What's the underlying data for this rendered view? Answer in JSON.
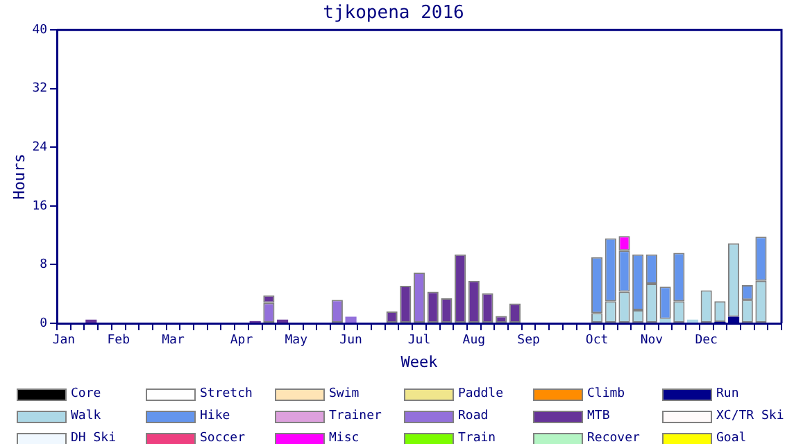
{
  "chart_data": {
    "type": "bar",
    "title": "tjkopena 2016",
    "xlabel": "Week",
    "ylabel": "Hours",
    "stacked": true,
    "grid": false,
    "legend": "bottom",
    "categories": [
      "Jan",
      null,
      null,
      null,
      "Feb",
      null,
      null,
      null,
      "Mar",
      null,
      null,
      null,
      null,
      "Apr",
      null,
      null,
      null,
      "May",
      null,
      null,
      null,
      "Jun",
      null,
      null,
      null,
      null,
      "Jul",
      null,
      null,
      null,
      "Aug",
      null,
      null,
      null,
      "Sep",
      null,
      null,
      null,
      null,
      "Oct",
      null,
      null,
      null,
      "Nov",
      null,
      null,
      null,
      "Dec",
      null,
      null,
      null,
      null,
      null
    ],
    "ylim": [
      0,
      40
    ],
    "yticks": [
      0,
      8,
      16,
      24,
      32,
      40
    ],
    "series": [
      {
        "name": "Core",
        "color": "#000000",
        "values": [
          0,
          0,
          0,
          0,
          0,
          0,
          0,
          0,
          0,
          0,
          0,
          0,
          0,
          0,
          0,
          0,
          0,
          0,
          0,
          0,
          0,
          0,
          0,
          0,
          0,
          0,
          0,
          0,
          0,
          0,
          0,
          0,
          0,
          0,
          0,
          0,
          0,
          0,
          0,
          0,
          0,
          0,
          0,
          0,
          0,
          0,
          0,
          0,
          0,
          0,
          0,
          0,
          0
        ]
      },
      {
        "name": "Stretch",
        "color": "#ffffff",
        "values": [
          0,
          0,
          0,
          0,
          0,
          0,
          0,
          0,
          0,
          0,
          0,
          0,
          0,
          0,
          0,
          0,
          0,
          0,
          0,
          0,
          0,
          0,
          0,
          0,
          0,
          0,
          0,
          0,
          0,
          0,
          0,
          0,
          0,
          0,
          0,
          0,
          0,
          0,
          0,
          0,
          0,
          0,
          0,
          0,
          0,
          0,
          0,
          0,
          0,
          0,
          0,
          0,
          0
        ]
      },
      {
        "name": "Swim",
        "color": "#ffe4b5",
        "values": [
          0,
          0,
          0,
          0,
          0,
          0,
          0,
          0,
          0,
          0,
          0,
          0,
          0,
          0,
          0,
          0,
          0,
          0,
          0,
          0,
          0,
          0,
          0,
          0,
          0,
          0,
          0,
          0,
          0,
          0,
          0,
          0,
          0,
          0,
          0,
          0,
          0,
          0,
          0,
          0,
          0,
          0,
          0,
          0,
          0,
          0,
          0,
          0,
          0,
          0,
          0,
          0,
          0
        ]
      },
      {
        "name": "Paddle",
        "color": "#f0e68c",
        "values": [
          0,
          0,
          0,
          0,
          0,
          0,
          0,
          0,
          0,
          0,
          0,
          0,
          0,
          0,
          0,
          0,
          0,
          0,
          0,
          0,
          0,
          0,
          0,
          0,
          0,
          0,
          0,
          0,
          0,
          0,
          0,
          0,
          0,
          0,
          0,
          0,
          0,
          0,
          0,
          0,
          0,
          0,
          0,
          0,
          0,
          0,
          0,
          0,
          0,
          0,
          0,
          0,
          0
        ]
      },
      {
        "name": "Climb",
        "color": "#ff8c00",
        "values": [
          0,
          0,
          0,
          0,
          0,
          0,
          0,
          0,
          0,
          0,
          0,
          0,
          0,
          0,
          0,
          0,
          0,
          0,
          0,
          0,
          0,
          0,
          0,
          0,
          0,
          0,
          0,
          0,
          0,
          0,
          0,
          0,
          0,
          0,
          0,
          0,
          0,
          0,
          0,
          0,
          0,
          0,
          0,
          0,
          0,
          0,
          0,
          0,
          0,
          0,
          0,
          0,
          0
        ]
      },
      {
        "name": "Run",
        "color": "#00008b",
        "values": [
          0,
          0,
          0,
          0,
          0,
          0,
          0,
          0,
          0,
          0,
          0,
          0,
          0,
          0,
          0,
          0,
          0,
          0,
          0,
          0,
          0,
          0,
          0,
          0,
          0,
          0,
          0,
          0,
          0,
          0,
          0,
          0,
          0,
          0,
          0,
          0,
          0,
          0,
          0,
          0,
          0,
          0,
          0,
          0,
          0,
          0,
          0,
          0,
          0.2,
          0.9,
          0,
          0,
          0
        ]
      },
      {
        "name": "Walk",
        "color": "#add8e6",
        "values": [
          0,
          0,
          0,
          0,
          0,
          0,
          0,
          0,
          0,
          0,
          0,
          0,
          0,
          0,
          0,
          0,
          0,
          0,
          0,
          0,
          0,
          0,
          0,
          0,
          0,
          0,
          0,
          0,
          0,
          0,
          0,
          0,
          0,
          0,
          0,
          0,
          0,
          0,
          0,
          1.4,
          3.0,
          4.3,
          1.8,
          5.4,
          0.6,
          3.0,
          0.5,
          4.5,
          2.8,
          10.0,
          3.2,
          5.8,
          0
        ]
      },
      {
        "name": "Hike",
        "color": "#6495ed",
        "values": [
          0,
          0,
          0,
          0,
          0,
          0,
          0,
          0,
          0,
          0,
          0,
          0,
          0,
          0,
          0,
          0,
          0,
          0,
          0,
          0,
          0,
          0,
          0,
          0,
          0,
          0,
          0,
          0,
          0,
          0,
          0,
          0,
          0,
          0,
          0,
          0,
          0,
          0,
          0,
          7.6,
          8.6,
          5.6,
          7.6,
          4.0,
          4.4,
          6.6,
          0,
          0,
          0,
          0,
          2.0,
          6.0,
          0
        ]
      },
      {
        "name": "Trainer",
        "color": "#dda0dd",
        "values": [
          0,
          0,
          0,
          0,
          0,
          0,
          0,
          0,
          0,
          0,
          0,
          0,
          0,
          0,
          0,
          0,
          0,
          0,
          0,
          0,
          0,
          0,
          0,
          0,
          0,
          0,
          0,
          0,
          0,
          0,
          0,
          0,
          0,
          0,
          0,
          0,
          0,
          0,
          0,
          0,
          0,
          0,
          0,
          0,
          0,
          0,
          0,
          0,
          0,
          0,
          0,
          0,
          0
        ]
      },
      {
        "name": "Road",
        "color": "#9370db",
        "values": [
          0,
          0,
          0,
          0,
          0,
          0,
          0,
          0,
          0,
          0,
          0,
          0,
          0,
          0,
          0,
          2.8,
          0,
          0,
          0,
          0,
          3.2,
          0.9,
          0,
          0,
          0,
          0,
          6.9,
          0,
          0,
          0,
          0,
          0,
          0,
          0,
          0,
          0,
          0,
          0,
          0,
          0,
          0,
          0,
          0,
          0,
          0,
          0,
          0,
          0,
          0,
          0,
          0,
          0,
          0
        ]
      },
      {
        "name": "MTB",
        "color": "#663399",
        "values": [
          0,
          0,
          0.5,
          0,
          0,
          0,
          0,
          0,
          0,
          0,
          0,
          0,
          0,
          0,
          0.3,
          1.0,
          0.5,
          0,
          0,
          0,
          0,
          0,
          0,
          0,
          1.6,
          5.1,
          0,
          4.3,
          3.4,
          9.4,
          5.8,
          4.1,
          1.0,
          2.7,
          0,
          0,
          0,
          0,
          0,
          0,
          0,
          0,
          0,
          0,
          0,
          0,
          0,
          0,
          0,
          0,
          0,
          0,
          0
        ]
      },
      {
        "name": "XC/TR Ski",
        "color": "#fffafa",
        "values": [
          0,
          0,
          0,
          0,
          0,
          0,
          0,
          0,
          0,
          0,
          0,
          0,
          0,
          0,
          0,
          0,
          0,
          0,
          0,
          0,
          0,
          0,
          0,
          0,
          0,
          0,
          0,
          0,
          0,
          0,
          0,
          0,
          0,
          0,
          0,
          0,
          0,
          0,
          0,
          0,
          0,
          0,
          0,
          0,
          0,
          0,
          0,
          0,
          0,
          0,
          0,
          0,
          0
        ]
      },
      {
        "name": "DH Ski",
        "color": "#f0f8ff",
        "values": [
          0,
          0,
          0,
          0,
          0,
          0,
          0,
          0,
          0,
          0,
          0,
          0,
          0,
          0,
          0,
          0,
          0,
          0,
          0,
          0,
          0,
          0,
          0,
          0,
          0,
          0,
          0,
          0,
          0,
          0,
          0,
          0,
          0,
          0,
          0,
          0,
          0,
          0,
          0,
          0,
          0,
          0,
          0,
          0,
          0,
          0,
          0,
          0,
          0,
          0,
          0,
          0,
          0
        ]
      },
      {
        "name": "Soccer",
        "color": "#ee4080",
        "values": [
          0,
          0,
          0,
          0,
          0,
          0,
          0,
          0,
          0,
          0,
          0,
          0,
          0,
          0,
          0,
          0,
          0,
          0,
          0,
          0,
          0,
          0,
          0,
          0,
          0,
          0,
          0,
          0,
          0,
          0,
          0,
          0,
          0,
          0,
          0,
          0,
          0,
          0,
          0,
          0,
          0,
          0,
          0,
          0,
          0,
          0,
          0,
          0,
          0,
          0,
          0,
          0,
          0
        ]
      },
      {
        "name": "Misc",
        "color": "#ff00ff",
        "values": [
          0,
          0,
          0,
          0,
          0,
          0,
          0,
          0,
          0,
          0,
          0,
          0,
          0,
          0,
          0,
          0,
          0,
          0,
          0,
          0,
          0,
          0,
          0,
          0,
          0,
          0,
          0,
          0,
          0,
          0,
          0,
          0,
          0,
          0,
          0,
          0,
          0,
          0,
          0,
          0,
          0,
          2.0,
          0,
          0,
          0,
          0,
          0,
          0,
          0,
          0,
          0,
          0,
          0
        ]
      },
      {
        "name": "Train",
        "color": "#7cfc00",
        "values": [
          0,
          0,
          0,
          0,
          0,
          0,
          0,
          0,
          0,
          0,
          0,
          0,
          0,
          0,
          0,
          0,
          0,
          0,
          0,
          0,
          0,
          0,
          0,
          0,
          0,
          0,
          0,
          0,
          0,
          0,
          0,
          0,
          0,
          0,
          0,
          0,
          0,
          0,
          0,
          0,
          0,
          0,
          0,
          0,
          0,
          0,
          0,
          0,
          0,
          0,
          0,
          0,
          0
        ]
      },
      {
        "name": "Recover",
        "color": "#b4f5c4",
        "values": [
          0,
          0,
          0,
          0,
          0,
          0,
          0,
          0,
          0,
          0,
          0,
          0,
          0,
          0,
          0,
          0,
          0,
          0,
          0,
          0,
          0,
          0,
          0,
          0,
          0,
          0,
          0,
          0,
          0,
          0,
          0,
          0,
          0,
          0,
          0,
          0,
          0,
          0,
          0,
          0,
          0,
          0,
          0,
          0,
          0,
          0,
          0,
          0,
          0,
          0,
          0,
          0,
          0
        ]
      },
      {
        "name": "Goal",
        "color": "#ffff00",
        "values": [
          0,
          0,
          0,
          0,
          0,
          0,
          0,
          0,
          0,
          0,
          0,
          0,
          0,
          0,
          0,
          0,
          0,
          0,
          0,
          0,
          0,
          0,
          0,
          0,
          0,
          0,
          0,
          0,
          0,
          0,
          0,
          0,
          0,
          0,
          0,
          0,
          0,
          0,
          0,
          0,
          0,
          0,
          0,
          0,
          0,
          0,
          0,
          0,
          0,
          0,
          0,
          0,
          0
        ]
      }
    ]
  }
}
